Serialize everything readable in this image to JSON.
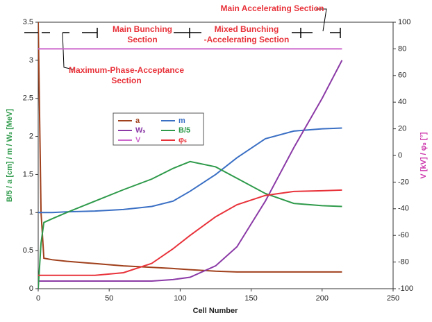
{
  "chart_data": {
    "type": "line",
    "xlabel": "Cell Number",
    "ylabel": "B/5 / a [cm] / m / Wₛ [MeV]",
    "y2label": "V [kV] / φₛ [°]",
    "annotations": [
      [
        "Main Accelerating Section"
      ],
      [
        "Main Bunching",
        "Section"
      ],
      [
        "Mixed Bunching",
        "-Accelerating Section"
      ],
      [
        "Maximum-Phase-Acceptance",
        "Section"
      ]
    ],
    "x": [
      0,
      2,
      4,
      10,
      20,
      40,
      60,
      80,
      95,
      107,
      125,
      140,
      160,
      180,
      200,
      214
    ],
    "xlim": [
      0,
      250
    ],
    "xticks": [
      0,
      50,
      100,
      150,
      200,
      250
    ],
    "ylim": [
      0,
      3.5
    ],
    "yticks": [
      0,
      0.5,
      1,
      1.5,
      2,
      2.5,
      3,
      3.5
    ],
    "y2lim": [
      -100,
      100
    ],
    "y2ticks": [
      -100,
      -80,
      -60,
      -40,
      -20,
      0,
      20,
      40,
      60,
      80,
      100
    ],
    "series": [
      {
        "name": "a",
        "color": "#a0401c",
        "values": [
          3.5,
          1.0,
          0.4,
          0.38,
          0.36,
          0.33,
          0.3,
          0.28,
          0.265,
          0.25,
          0.23,
          0.22,
          0.22,
          0.22,
          0.22,
          0.22
        ]
      },
      {
        "name": "m",
        "color": "#3a6fc4",
        "values": [
          1,
          1,
          1,
          1,
          1.01,
          1.02,
          1.04,
          1.08,
          1.15,
          1.28,
          1.5,
          1.72,
          1.97,
          2.07,
          2.1,
          2.11
        ]
      },
      {
        "name": "Wₛ",
        "color": "#8b3aa6",
        "values": [
          0.1,
          0.1,
          0.1,
          0.1,
          0.1,
          0.1,
          0.1,
          0.1,
          0.12,
          0.15,
          0.3,
          0.55,
          1.15,
          1.85,
          2.5,
          3.0
        ]
      },
      {
        "name": "B/5",
        "color": "#2e9a4a",
        "values": [
          0,
          0.6,
          0.87,
          0.92,
          1.0,
          1.15,
          1.3,
          1.44,
          1.58,
          1.67,
          1.6,
          1.45,
          1.25,
          1.12,
          1.09,
          1.08
        ]
      },
      {
        "name": "V",
        "color": "#cc66cc",
        "axis": "y2",
        "values": [
          80,
          80,
          80,
          80,
          80,
          80,
          80,
          80,
          80,
          80,
          80,
          80,
          80,
          80,
          80,
          80
        ]
      },
      {
        "name": "φₛ",
        "color": "#e8323a",
        "axis": "y2",
        "values": [
          -90,
          -90,
          -90,
          -90,
          -90,
          -90,
          -88,
          -81,
          -70,
          -60,
          -46,
          -37,
          -30,
          -27,
          -26.5,
          -26
        ]
      }
    ]
  }
}
